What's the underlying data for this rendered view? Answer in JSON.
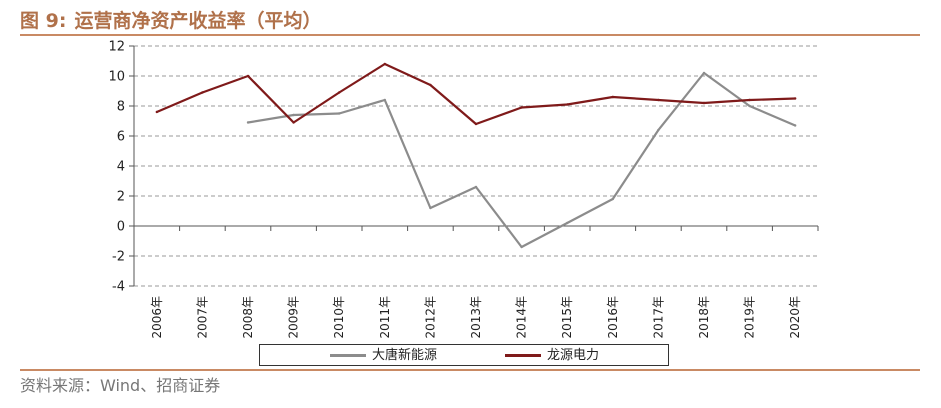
{
  "figure": {
    "number": "图 9:",
    "title": "运营商净资产收益率（平均）",
    "source": "资料来源：Wind、招商证券"
  },
  "chart_data": {
    "type": "line",
    "categories": [
      "2006年",
      "2007年",
      "2008年",
      "2009年",
      "2010年",
      "2011年",
      "2012年",
      "2013年",
      "2014年",
      "2015年",
      "2016年",
      "2017年",
      "2018年",
      "2019年",
      "2020年"
    ],
    "series": [
      {
        "name": "大唐新能源",
        "color": "#8c8c8c",
        "values": [
          null,
          null,
          6.9,
          7.4,
          7.5,
          8.4,
          1.2,
          2.6,
          -1.4,
          0.2,
          1.8,
          6.4,
          10.2,
          8.0,
          6.7
        ]
      },
      {
        "name": "龙源电力",
        "color": "#7f1a1a",
        "values": [
          7.6,
          8.9,
          10.0,
          6.9,
          8.9,
          10.8,
          9.4,
          6.8,
          7.9,
          8.1,
          8.6,
          8.4,
          8.2,
          8.4,
          8.5
        ]
      }
    ],
    "ylim": [
      -4,
      12
    ],
    "yticks": [
      -4,
      -2,
      0,
      2,
      4,
      6,
      8,
      10,
      12
    ],
    "grid": true,
    "legend_position": "bottom"
  }
}
